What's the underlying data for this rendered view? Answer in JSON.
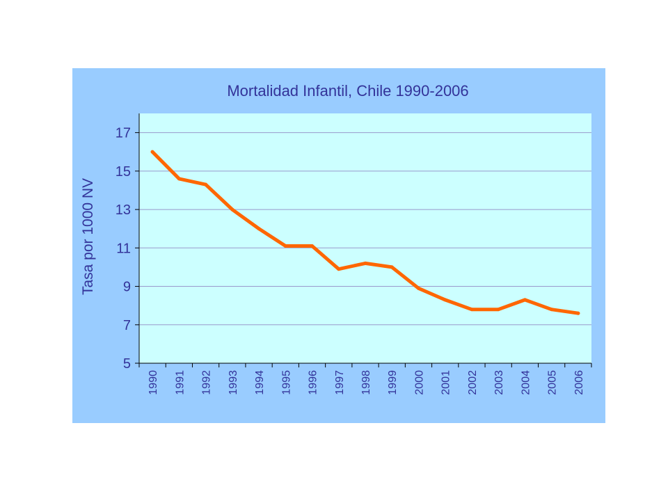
{
  "chart_data": {
    "type": "line",
    "title": "Mortalidad Infantil, Chile 1990-2006",
    "xlabel": "",
    "ylabel": "Tasa por 1000 NV",
    "categories": [
      "1990",
      "1991",
      "1992",
      "1993",
      "1994",
      "1995",
      "1996",
      "1997",
      "1998",
      "1999",
      "2000",
      "2001",
      "2002",
      "2003",
      "2004",
      "2005",
      "2006"
    ],
    "series": [
      {
        "values": [
          16.0,
          14.6,
          14.3,
          13.0,
          12.0,
          11.1,
          11.1,
          9.9,
          10.2,
          10.0,
          8.9,
          8.3,
          7.8,
          7.8,
          8.3,
          7.8,
          7.6
        ]
      }
    ],
    "yticks": [
      5,
      7,
      9,
      11,
      13,
      15,
      17
    ],
    "ylim": [
      5,
      18
    ],
    "grid": true,
    "legend": "none",
    "colors": {
      "panel_background": "#99ccff",
      "plot_background": "#ccffff",
      "line": "#ff6600",
      "text": "#333399",
      "gridline": "#9999cc"
    }
  }
}
